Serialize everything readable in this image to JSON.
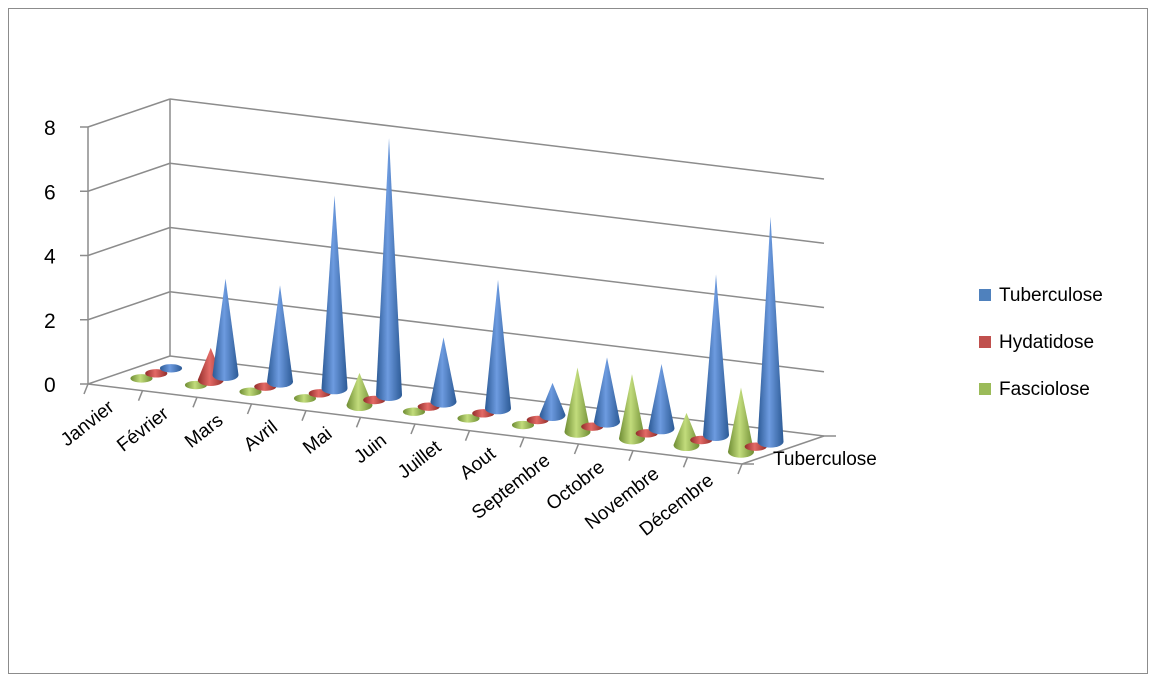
{
  "chart_data": {
    "type": "bar",
    "variant": "3d-cone",
    "title": "",
    "xlabel": "",
    "ylabel": "",
    "depth_axis_label": "Tuberculose",
    "categories": [
      "Janvier",
      "Février",
      "Mars",
      "Avril",
      "Mai",
      "Juin",
      "Juillet",
      "Aout",
      "Septembre",
      "Octobre",
      "Novembre",
      "Décembre"
    ],
    "series": [
      {
        "name": "Tuberculose",
        "color": "#4f81bd",
        "values": [
          0,
          3,
          3,
          6,
          8,
          2,
          4,
          1,
          2,
          2,
          5,
          7
        ]
      },
      {
        "name": "Hydatidose",
        "color": "#c0504d",
        "values": [
          0,
          1,
          0,
          0,
          0,
          0,
          0,
          0,
          0,
          0,
          0,
          0
        ]
      },
      {
        "name": "Fasciolose",
        "color": "#9bbb59",
        "values": [
          0,
          0,
          0,
          0,
          1,
          0,
          0,
          0,
          2,
          2,
          1,
          2
        ]
      }
    ],
    "ylim": [
      0,
      8
    ],
    "yticks": [
      "0",
      "2",
      "4",
      "6",
      "8"
    ],
    "grid": true,
    "legend": "right"
  }
}
